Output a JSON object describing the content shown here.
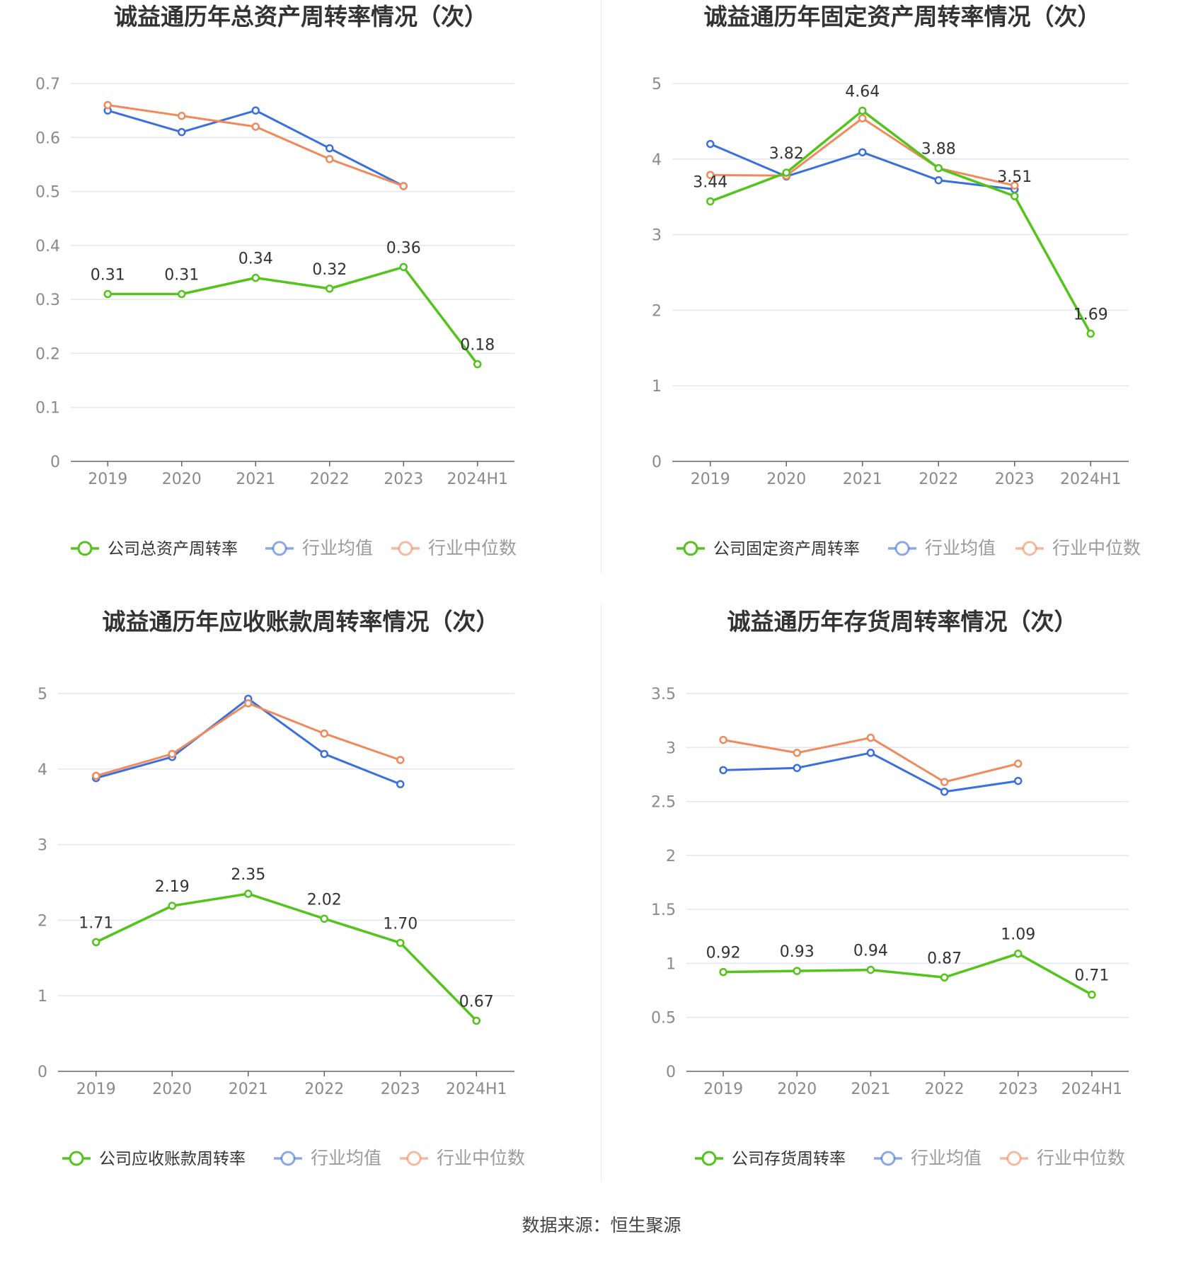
{
  "source_text": "数据来源：恒生聚源",
  "colors": {
    "company": "#52c41a",
    "avg": "#3b6fde",
    "median": "#f08a5d",
    "grid": "#e3e6f0",
    "axis": "#666666"
  },
  "chart_data": [
    {
      "type": "line",
      "title": "诚益通历年总资产周转率情况（次）",
      "categories": [
        "2019",
        "2020",
        "2021",
        "2022",
        "2023",
        "2024H1"
      ],
      "yticks": [
        "0",
        "0.1",
        "0.2",
        "0.3",
        "0.4",
        "0.5",
        "0.6",
        "0.7"
      ],
      "ylim": [
        0,
        0.7
      ],
      "series": [
        {
          "name": "公司总资产周转率",
          "color": "#52c41a",
          "values": [
            0.31,
            0.31,
            0.34,
            0.32,
            0.36,
            0.18
          ],
          "labels": [
            "0.31",
            "0.31",
            "0.34",
            "0.32",
            "0.36",
            "0.18"
          ]
        },
        {
          "name": "行业均值",
          "color": "#3b6fde",
          "values": [
            0.65,
            0.61,
            0.65,
            0.58,
            0.51,
            null
          ]
        },
        {
          "name": "行业中位数",
          "color": "#f08a5d",
          "values": [
            0.66,
            0.64,
            0.62,
            0.56,
            0.51,
            null
          ]
        }
      ]
    },
    {
      "type": "line",
      "title": "诚益通历年固定资产周转率情况（次）",
      "categories": [
        "2019",
        "2020",
        "2021",
        "2022",
        "2023",
        "2024H1"
      ],
      "yticks": [
        "0",
        "1",
        "2",
        "3",
        "4",
        "5"
      ],
      "ylim": [
        0,
        5
      ],
      "series": [
        {
          "name": "公司固定资产周转率",
          "color": "#52c41a",
          "values": [
            3.44,
            3.82,
            4.64,
            3.88,
            3.51,
            1.69
          ],
          "labels": [
            "3.44",
            "3.82",
            "4.64",
            "3.88",
            "3.51",
            "1.69"
          ]
        },
        {
          "name": "行业均值",
          "color": "#3b6fde",
          "values": [
            4.2,
            3.77,
            4.09,
            3.72,
            3.6,
            null
          ]
        },
        {
          "name": "行业中位数",
          "color": "#f08a5d",
          "values": [
            3.79,
            3.78,
            4.54,
            3.88,
            3.65,
            null
          ]
        }
      ]
    },
    {
      "type": "line",
      "title": "诚益通历年应收账款周转率情况（次）",
      "categories": [
        "2019",
        "2020",
        "2021",
        "2022",
        "2023",
        "2024H1"
      ],
      "yticks": [
        "0",
        "1",
        "2",
        "3",
        "4",
        "5"
      ],
      "ylim": [
        0,
        5
      ],
      "series": [
        {
          "name": "公司应收账款周转率",
          "color": "#52c41a",
          "values": [
            1.71,
            2.19,
            2.35,
            2.02,
            1.7,
            0.67
          ],
          "labels": [
            "1.71",
            "2.19",
            "2.35",
            "2.02",
            "1.70",
            "0.67"
          ]
        },
        {
          "name": "行业均值",
          "color": "#3b6fde",
          "values": [
            3.88,
            4.16,
            4.93,
            4.2,
            3.8,
            null
          ]
        },
        {
          "name": "行业中位数",
          "color": "#f08a5d",
          "values": [
            3.91,
            4.2,
            4.87,
            4.47,
            4.12,
            null
          ]
        }
      ]
    },
    {
      "type": "line",
      "title": "诚益通历年存货周转率情况（次）",
      "categories": [
        "2019",
        "2020",
        "2021",
        "2022",
        "2023",
        "2024H1"
      ],
      "yticks": [
        "0",
        "0.5",
        "1",
        "1.5",
        "2",
        "2.5",
        "3",
        "3.5"
      ],
      "ylim": [
        0,
        3.5
      ],
      "series": [
        {
          "name": "公司存货周转率",
          "color": "#52c41a",
          "values": [
            0.92,
            0.93,
            0.94,
            0.87,
            1.09,
            0.71
          ],
          "labels": [
            "0.92",
            "0.93",
            "0.94",
            "0.87",
            "1.09",
            "0.71"
          ]
        },
        {
          "name": "行业均值",
          "color": "#3b6fde",
          "values": [
            2.79,
            2.81,
            2.95,
            2.59,
            2.69,
            null
          ]
        },
        {
          "name": "行业中位数",
          "color": "#f08a5d",
          "values": [
            3.07,
            2.95,
            3.09,
            2.68,
            2.85,
            null
          ]
        }
      ]
    }
  ]
}
